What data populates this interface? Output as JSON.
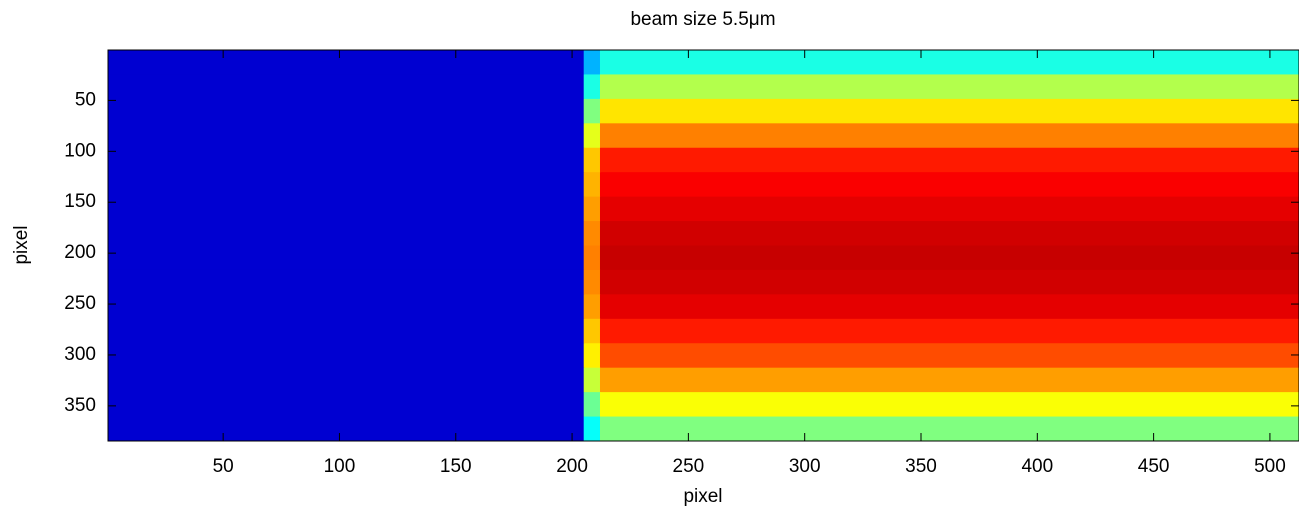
{
  "chart_data": {
    "type": "heatmap",
    "title": "beam size 5.5μm",
    "xlabel": "pixel",
    "ylabel": "pixel",
    "xlim": [
      0.5,
      512.5
    ],
    "ylim": [
      0.5,
      384.5
    ],
    "y_reversed": true,
    "xticks": [
      50,
      100,
      150,
      200,
      250,
      300,
      350,
      400,
      450,
      500
    ],
    "yticks": [
      50,
      100,
      150,
      200,
      250,
      300,
      350
    ],
    "colormap": "jet",
    "clim": [
      0,
      1
    ],
    "x_edges": [
      0.5,
      205,
      212,
      512.5
    ],
    "y_edges": [
      0.5,
      24.5,
      48.5,
      72.5,
      96.5,
      120.5,
      144.5,
      168.5,
      192.5,
      216.5,
      240.5,
      264.5,
      288.5,
      312.5,
      336.5,
      360.5,
      384.5
    ],
    "z": [
      [
        0.08,
        0.3,
        0.4
      ],
      [
        0.08,
        0.4,
        0.55
      ],
      [
        0.08,
        0.5,
        0.65
      ],
      [
        0.08,
        0.6,
        0.75
      ],
      [
        0.08,
        0.68,
        0.85
      ],
      [
        0.08,
        0.7,
        0.88
      ],
      [
        0.08,
        0.72,
        0.9
      ],
      [
        0.08,
        0.74,
        0.92
      ],
      [
        0.08,
        0.75,
        0.93
      ],
      [
        0.08,
        0.74,
        0.92
      ],
      [
        0.08,
        0.72,
        0.9
      ],
      [
        0.08,
        0.68,
        0.85
      ],
      [
        0.08,
        0.64,
        0.8
      ],
      [
        0.08,
        0.57,
        0.72
      ],
      [
        0.08,
        0.48,
        0.62
      ],
      [
        0.08,
        0.38,
        0.5
      ]
    ]
  }
}
